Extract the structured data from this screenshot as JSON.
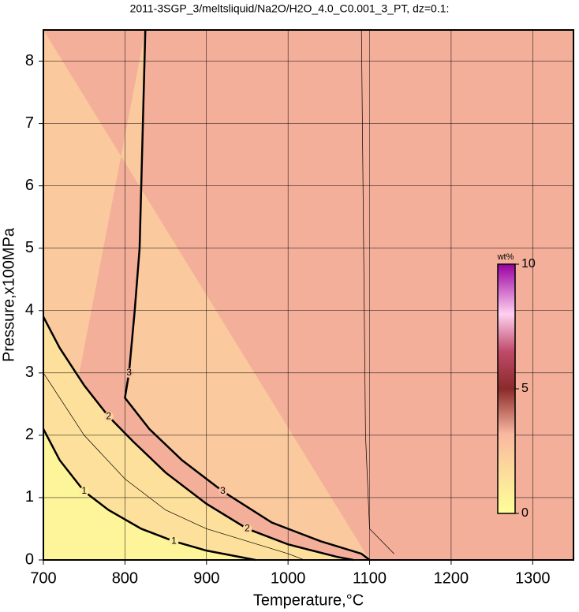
{
  "chart_data": {
    "type": "contour",
    "title": "2011-3SGP_3/meltsliquid/Na2O/H2O_4.0_C0.001_3_PT, dz=0.1:",
    "x_label": "Temperature,°C",
    "y_label": "Pressure,x100MPa",
    "xlim": [
      700,
      1350
    ],
    "xticks": [
      700,
      800,
      900,
      1000,
      1100,
      1200,
      1300
    ],
    "ylim": [
      0,
      8.5
    ],
    "yticks": [
      0,
      1,
      2,
      3,
      4,
      5,
      6,
      7,
      8
    ],
    "grid": true,
    "field_value": 3.3,
    "contours": [
      {
        "level": 1,
        "x": [
          700,
          720,
          750,
          780,
          820,
          860,
          900,
          960
        ],
        "y": [
          2.1,
          1.6,
          1.1,
          0.8,
          0.5,
          0.3,
          0.15,
          0
        ]
      },
      {
        "level": 2,
        "x": [
          700,
          720,
          750,
          780,
          810,
          850,
          900,
          950,
          1000,
          1060,
          1080
        ],
        "y": [
          3.9,
          3.4,
          2.8,
          2.3,
          1.9,
          1.4,
          0.9,
          0.5,
          0.25,
          0.05,
          0
        ]
      },
      {
        "level": 3,
        "x": [
          825,
          822,
          818,
          812,
          805,
          800,
          830,
          870,
          920,
          980,
          1040,
          1090,
          1100
        ],
        "y": [
          8.5,
          7,
          5,
          4,
          3,
          2.6,
          2.1,
          1.6,
          1.1,
          0.6,
          0.3,
          0.1,
          0
        ]
      },
      {
        "level": 1.5,
        "x": [
          700,
          750,
          800,
          850,
          900,
          1000,
          1020
        ],
        "y": [
          3,
          2,
          1.3,
          0.8,
          0.5,
          0.1,
          0
        ]
      },
      {
        "level": 3.4,
        "x": [
          1130,
          1100,
          1095,
          1090
        ],
        "y": [
          0.1,
          0.5,
          2,
          8.5
        ]
      }
    ],
    "colorbar": {
      "label": "wt%",
      "lim": [
        0,
        10
      ],
      "ticks": [
        0,
        5,
        10
      ],
      "stops": [
        0,
        2,
        3.2,
        5,
        6.5,
        8,
        10
      ],
      "colors": [
        "#ffff99",
        "#fcd59c",
        "#f9b7a0",
        "#8a2a2a",
        "#c04a6a",
        "#ffd0f0",
        "#9a00a0"
      ]
    }
  }
}
